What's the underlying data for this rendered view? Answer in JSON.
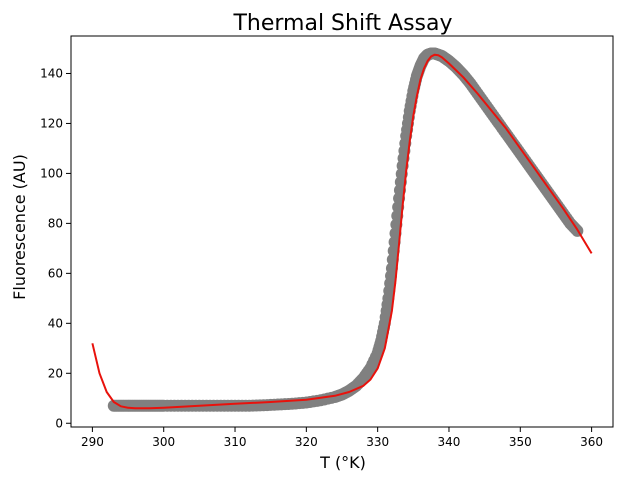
{
  "chart_data": {
    "type": "scatter",
    "title": "Thermal Shift Assay",
    "xlabel": "T (°K)",
    "ylabel": "Fluorescence (AU)",
    "xlim": [
      287,
      363
    ],
    "ylim": [
      -1.5,
      155
    ],
    "xticks": [
      290,
      300,
      310,
      320,
      330,
      340,
      350,
      360
    ],
    "yticks": [
      0,
      20,
      40,
      60,
      80,
      100,
      120,
      140
    ],
    "grid": false,
    "legend": "none",
    "series": [
      {
        "kind": "scatter",
        "color": "#808080",
        "x": [
          293,
          294,
          295,
          296,
          297,
          298,
          299,
          300,
          302,
          304,
          306,
          308,
          310,
          312,
          314,
          316,
          318,
          320,
          322,
          324,
          325,
          326,
          327,
          328,
          329,
          330,
          330.5,
          331,
          331.5,
          332,
          332.5,
          333,
          333.5,
          334,
          334.5,
          335,
          335.5,
          336,
          336.5,
          337,
          337.5,
          338,
          338.5,
          339,
          339.5,
          340,
          341,
          342,
          343,
          344,
          345,
          346,
          347,
          348,
          349,
          350,
          351,
          352,
          353,
          354,
          355,
          356,
          357,
          358
        ],
        "y": [
          7,
          7,
          7,
          7,
          7,
          7,
          7,
          7,
          7,
          7,
          7,
          7,
          7,
          7,
          7.2,
          7.5,
          7.8,
          8.3,
          9.2,
          10.5,
          11.5,
          13,
          15,
          18,
          22,
          28,
          33,
          40,
          50,
          62,
          76,
          90,
          103,
          115,
          125,
          133,
          139,
          143,
          146,
          147.5,
          148,
          148,
          147.5,
          147,
          146,
          145,
          142.5,
          139.5,
          136,
          132,
          128,
          124,
          120,
          116,
          112,
          108,
          104,
          100,
          96,
          92,
          88,
          84,
          80,
          77
        ]
      },
      {
        "kind": "line",
        "color": "#e8120c",
        "x": [
          290,
          291,
          292,
          293,
          294,
          295,
          296,
          298,
          300,
          305,
          310,
          315,
          320,
          324,
          326,
          328,
          329,
          330,
          331,
          332,
          332.5,
          333,
          333.5,
          334,
          334.5,
          335,
          335.5,
          336,
          336.5,
          337,
          337.5,
          338,
          338.5,
          339,
          340,
          342,
          344,
          346,
          348,
          350,
          352,
          354,
          356,
          358,
          360
        ],
        "y": [
          32,
          20,
          12.5,
          8.5,
          6.8,
          6.2,
          6,
          6,
          6.2,
          7,
          7.8,
          8.5,
          9.4,
          11,
          12.5,
          15,
          17.5,
          22,
          30,
          45,
          57,
          72,
          87,
          101,
          113,
          123,
          131,
          137.5,
          142,
          145,
          146.8,
          147.5,
          147.3,
          146.5,
          144,
          138.5,
          132,
          125,
          118,
          110,
          102,
          94,
          86,
          77.5,
          68
        ]
      }
    ]
  }
}
